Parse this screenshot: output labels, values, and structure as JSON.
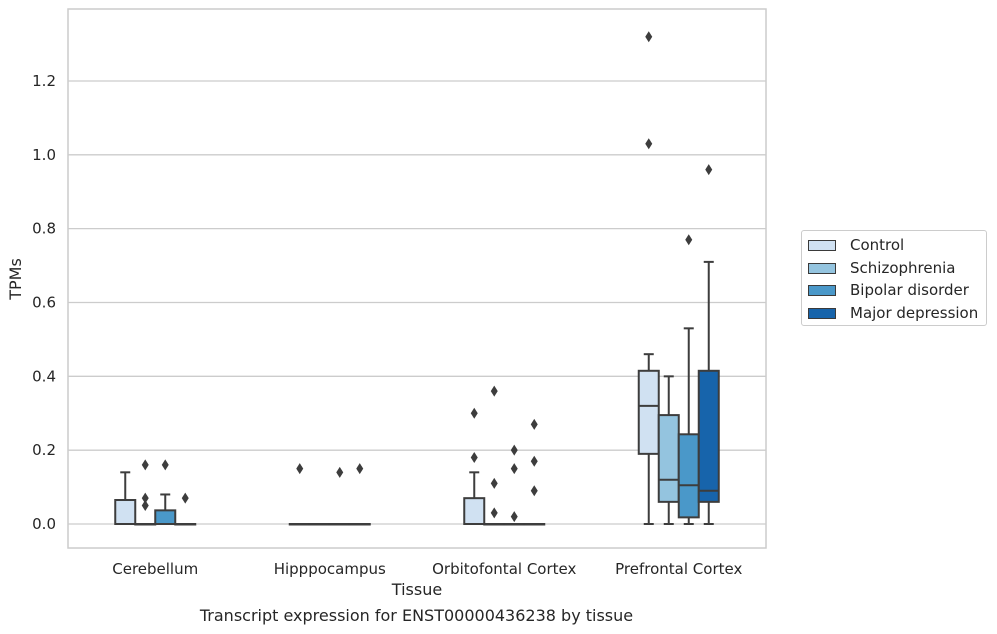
{
  "caption": "Transcript expression for ENST00000436238 by tissue",
  "chart_data": {
    "type": "box",
    "xlabel": "Tissue",
    "ylabel": "TPMs",
    "ylim": [
      -0.065,
      1.395
    ],
    "yticks": [
      0.0,
      0.2,
      0.4,
      0.6,
      0.8,
      1.0,
      1.2
    ],
    "ytick_labels": [
      "0.0",
      "0.2",
      "0.4",
      "0.6",
      "0.8",
      "1.0",
      "1.2"
    ],
    "grid": true,
    "legend_position": "right",
    "categories": [
      "Cerebellum",
      "Hipppocampus",
      "Orbitofontal Cortex",
      "Prefrontal Cortex"
    ],
    "series": [
      {
        "name": "Control",
        "color": "#d0e1f2",
        "boxes": [
          {
            "q1": 0.0,
            "median": 0.0,
            "q3": 0.065,
            "whisker_low": 0.0,
            "whisker_high": 0.14,
            "outliers": []
          },
          {
            "q1": 0.0,
            "median": 0.0,
            "q3": 0.0,
            "whisker_low": 0.0,
            "whisker_high": 0.0,
            "outliers": [
              0.15
            ]
          },
          {
            "q1": 0.0,
            "median": 0.0,
            "q3": 0.07,
            "whisker_low": 0.0,
            "whisker_high": 0.14,
            "outliers": [
              0.18,
              0.3
            ]
          },
          {
            "q1": 0.19,
            "median": 0.32,
            "q3": 0.415,
            "whisker_low": 0.0,
            "whisker_high": 0.46,
            "outliers": [
              1.03,
              1.32
            ]
          }
        ]
      },
      {
        "name": "Schizophrenia",
        "color": "#94c4df",
        "boxes": [
          {
            "q1": 0.0,
            "median": 0.0,
            "q3": 0.0,
            "whisker_low": 0.0,
            "whisker_high": 0.0,
            "outliers": [
              0.05,
              0.07,
              0.16
            ]
          },
          {
            "q1": 0.0,
            "median": 0.0,
            "q3": 0.0,
            "whisker_low": 0.0,
            "whisker_high": 0.0,
            "outliers": []
          },
          {
            "q1": 0.0,
            "median": 0.0,
            "q3": 0.0,
            "whisker_low": 0.0,
            "whisker_high": 0.0,
            "outliers": [
              0.03,
              0.11,
              0.36
            ]
          },
          {
            "q1": 0.06,
            "median": 0.12,
            "q3": 0.295,
            "whisker_low": 0.0,
            "whisker_high": 0.4,
            "outliers": []
          }
        ]
      },
      {
        "name": "Bipolar disorder",
        "color": "#4a98c9",
        "boxes": [
          {
            "q1": 0.0,
            "median": 0.0,
            "q3": 0.037,
            "whisker_low": 0.0,
            "whisker_high": 0.08,
            "outliers": [
              0.16
            ]
          },
          {
            "q1": 0.0,
            "median": 0.0,
            "q3": 0.0,
            "whisker_low": 0.0,
            "whisker_high": 0.0,
            "outliers": [
              0.14
            ]
          },
          {
            "q1": 0.0,
            "median": 0.0,
            "q3": 0.0,
            "whisker_low": 0.0,
            "whisker_high": 0.0,
            "outliers": [
              0.02,
              0.15,
              0.2
            ]
          },
          {
            "q1": 0.018,
            "median": 0.105,
            "q3": 0.243,
            "whisker_low": 0.0,
            "whisker_high": 0.53,
            "outliers": [
              0.77
            ]
          }
        ]
      },
      {
        "name": "Major depression",
        "color": "#1764ab",
        "boxes": [
          {
            "q1": 0.0,
            "median": 0.0,
            "q3": 0.0,
            "whisker_low": 0.0,
            "whisker_high": 0.0,
            "outliers": [
              0.07
            ]
          },
          {
            "q1": 0.0,
            "median": 0.0,
            "q3": 0.0,
            "whisker_low": 0.0,
            "whisker_high": 0.0,
            "outliers": [
              0.15
            ]
          },
          {
            "q1": 0.0,
            "median": 0.0,
            "q3": 0.0,
            "whisker_low": 0.0,
            "whisker_high": 0.0,
            "outliers": [
              0.09,
              0.17,
              0.27
            ]
          },
          {
            "q1": 0.06,
            "median": 0.09,
            "q3": 0.415,
            "whisker_low": 0.0,
            "whisker_high": 0.71,
            "outliers": [
              0.96
            ]
          }
        ]
      }
    ]
  }
}
